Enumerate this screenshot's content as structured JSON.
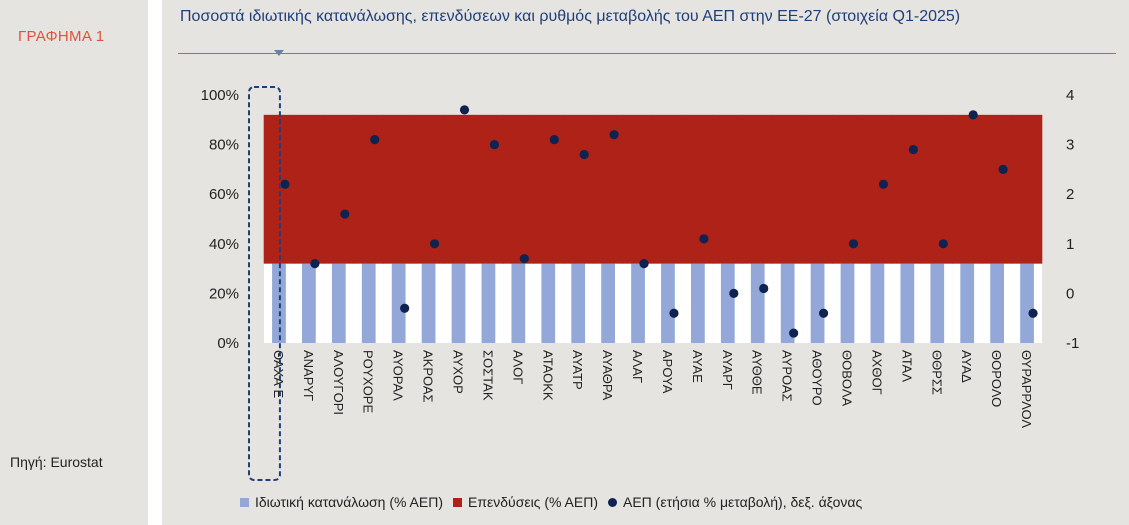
{
  "figure_label": "ΓΡΑΦΗΜΑ 1",
  "source": "Πηγή: Eurostat",
  "chart_data": {
    "type": "bar",
    "title": "Ποσοστά ιδιωτικής κατανάλωσης, επενδύσεων και ρυθμός μεταβολής του ΑΕΠ στην ΕΕ-27 (στοιχεία Q1-2025)",
    "categories": [
      "ΘΑΧΑ Ε",
      "ΑΝΑΡΥΓ",
      "ΑΛΟΥΓΟΡΙ",
      "ΡΟΥΧΟΡΕ",
      "ΑΥΟΡΑΛ",
      "ΑΚΡΟΑΣ",
      "ΑΥΧΟΡ",
      "ΣΟΣΤΑΚ",
      "ΑΛΟΓ",
      "ΑΤΑΟΚΚ",
      "ΑΥΑΤΡ",
      "ΑΥΑΘΡΑ",
      "ΑΛΑΓ",
      "ΑΡΟΥΑ",
      "ΑΥΑΕ",
      "ΑΥΑΡΓ",
      "ΑΥΘΘΕ",
      "ΑΥΡΟΑΣ",
      "ΑΘΟΥΡΟ",
      "ΘΟΒΟΛΑ",
      "ΑΧΘΟΓ",
      "ΑΤΑΛ",
      "ΘΘΡΣΣ",
      "ΑΥΑΔ",
      "ΘΟΡΟΛΟ",
      "ΘΥΡΑΡΡΛΟΛ"
    ],
    "series": [
      {
        "name": "Ιδιωτική κατανάλωση (% ΑΕΠ)",
        "values": [
          32,
          32,
          32,
          32,
          32,
          32,
          32,
          32,
          32,
          32,
          32,
          32,
          32,
          32,
          32,
          32,
          32,
          32,
          32,
          32,
          32,
          32,
          32,
          32,
          32,
          32
        ]
      },
      {
        "name": "Επενδύσεις (% ΑΕΠ)",
        "values": [
          60,
          60,
          60,
          60,
          60,
          60,
          60,
          60,
          60,
          60,
          60,
          60,
          60,
          60,
          60,
          60,
          60,
          60,
          60,
          60,
          60,
          60,
          60,
          60,
          60,
          60
        ]
      },
      {
        "name": "ΑΕΠ (ετήσια % μεταβολή), δεξ. άξονας",
        "axis": "right",
        "values": [
          2.2,
          0.6,
          1.6,
          3.1,
          -0.3,
          1.0,
          3.7,
          3.0,
          0.7,
          3.1,
          2.8,
          3.2,
          0.6,
          -0.4,
          1.1,
          0.0,
          0.1,
          -0.8,
          -0.4,
          1.0,
          2.2,
          2.9,
          1.0,
          3.6,
          2.5,
          -0.4
        ]
      }
    ],
    "y_left": {
      "ticks": [
        "0%",
        "20%",
        "40%",
        "60%",
        "80%",
        "100%"
      ],
      "lim": [
        0,
        100
      ]
    },
    "y_right": {
      "ticks": [
        "-1",
        "0",
        "1",
        "2",
        "3",
        "4"
      ],
      "lim": [
        -1,
        4
      ]
    },
    "highlight_category": 0,
    "colors": {
      "consumption": "#93a8d8",
      "investment": "#ae2218",
      "gdp": "#0f2250"
    },
    "legend_position": "bottom"
  }
}
